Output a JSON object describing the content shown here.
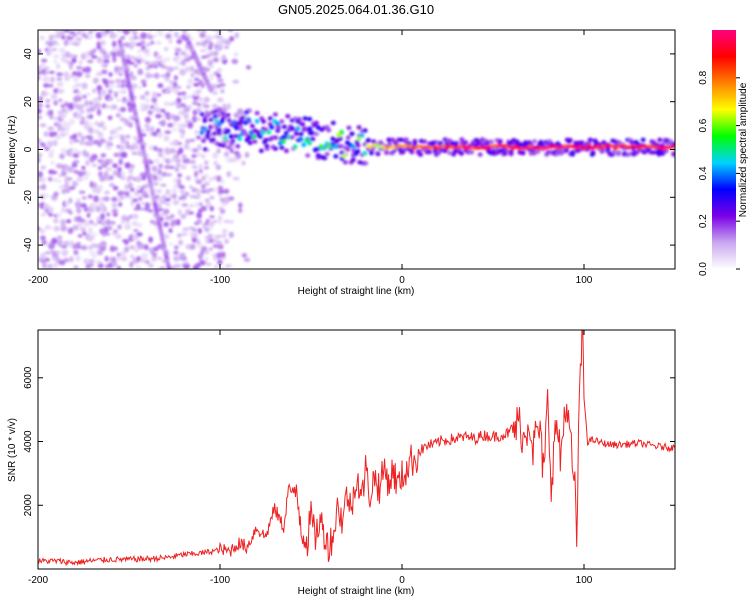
{
  "title": "GN05.2025.064.01.36.G10",
  "chart_data": [
    {
      "type": "heatmap",
      "title": "GN05.2025.064.01.36.G10",
      "xlabel": "Height of straight line (km)",
      "ylabel": "Frequency (Hz)",
      "xlim": [
        -200,
        150
      ],
      "ylim": [
        -50,
        50
      ],
      "x_ticks": [
        -200,
        -100,
        0,
        100
      ],
      "y_ticks": [
        -40,
        -20,
        0,
        20,
        40
      ],
      "colorbar": {
        "label": "Normalized spectral amplitude",
        "range": [
          0,
          1
        ],
        "ticks": [
          0.0,
          0.2,
          0.4,
          0.6,
          0.8
        ],
        "tick_labels": [
          "0.0",
          "0.2",
          "0.4",
          "0.6",
          "0.8"
        ],
        "colors": [
          "#ffffff",
          "#c9a6f0",
          "#7a00e6",
          "#0000ff",
          "#00d2ff",
          "#00ff00",
          "#ffff00",
          "#ff8000",
          "#ff0000",
          "#ff0080"
        ]
      },
      "features": [
        {
          "name": "scattered noise",
          "x_range": [
            -200,
            -85
          ],
          "y_range": [
            -50,
            50
          ],
          "amplitude": 0.1
        },
        {
          "name": "diagonal trace",
          "x_start": -155,
          "y_start": 45,
          "x_end": -128,
          "y_end": -50,
          "amplitude": 0.12
        },
        {
          "name": "diagonal trace",
          "x_start": -118,
          "y_start": 46,
          "x_end": -105,
          "y_end": 25,
          "amplitude": 0.12
        },
        {
          "name": "carrier",
          "x": [
            -110,
            -90,
            -70,
            -50,
            -30,
            -10,
            0,
            10,
            30,
            60,
            90,
            110,
            150
          ],
          "y": [
            8,
            8,
            7,
            5,
            2,
            1,
            1,
            1,
            1,
            1,
            1,
            1,
            1
          ],
          "amplitude": [
            0.4,
            0.45,
            0.5,
            0.55,
            0.6,
            0.75,
            0.85,
            0.9,
            0.92,
            0.95,
            0.95,
            0.95,
            0.95
          ]
        }
      ]
    },
    {
      "type": "line",
      "xlabel": "Height of straight line (km)",
      "ylabel": "SNR (10 * v/v)",
      "xlim": [
        -200,
        150
      ],
      "ylim": [
        0,
        7500
      ],
      "x_ticks": [
        -200,
        -100,
        0,
        100
      ],
      "y_ticks": [
        2000,
        4000,
        6000
      ],
      "color": "#ee2222",
      "series": [
        {
          "x": [
            -200,
            -190,
            -180,
            -170,
            -160,
            -150,
            -140,
            -130,
            -120,
            -110,
            -100,
            -95,
            -90,
            -85,
            -80,
            -75,
            -70,
            -65,
            -62,
            -60,
            -58,
            -55,
            -52,
            -50,
            -48,
            -45,
            -40,
            -37,
            -35,
            -33,
            -30,
            -28,
            -25,
            -22,
            -20,
            -18,
            -15,
            -12,
            -10,
            -7,
            -5,
            -2,
            0,
            3,
            5,
            8,
            10,
            12,
            15,
            18,
            20,
            25,
            30,
            35,
            40,
            45,
            50,
            55,
            60,
            65,
            67,
            70,
            72,
            75,
            78,
            80,
            82,
            85,
            87,
            90,
            92,
            94,
            95,
            96,
            97,
            98,
            99,
            100,
            102,
            105,
            110,
            115,
            120,
            130,
            140,
            150
          ],
          "y": [
            250,
            250,
            200,
            260,
            300,
            300,
            320,
            350,
            450,
            500,
            600,
            550,
            800,
            700,
            1300,
            1000,
            1900,
            1300,
            2700,
            2100,
            2500,
            1200,
            900,
            1700,
            1000,
            1500,
            700,
            1300,
            2100,
            1500,
            2400,
            1800,
            3000,
            2200,
            3200,
            2300,
            2900,
            2500,
            3200,
            2700,
            3100,
            2600,
            2900,
            3200,
            3400,
            3500,
            3700,
            3800,
            3900,
            3900,
            4000,
            4050,
            4100,
            4150,
            4100,
            4200,
            4150,
            4200,
            4300,
            4600,
            4000,
            4800,
            3800,
            4500,
            3000,
            5200,
            2800,
            4700,
            3400,
            5300,
            4200,
            3100,
            2400,
            900,
            4100,
            6000,
            7500,
            5400,
            4000,
            4050,
            3950,
            3900,
            3900,
            3950,
            3850,
            3800
          ]
        }
      ]
    }
  ]
}
